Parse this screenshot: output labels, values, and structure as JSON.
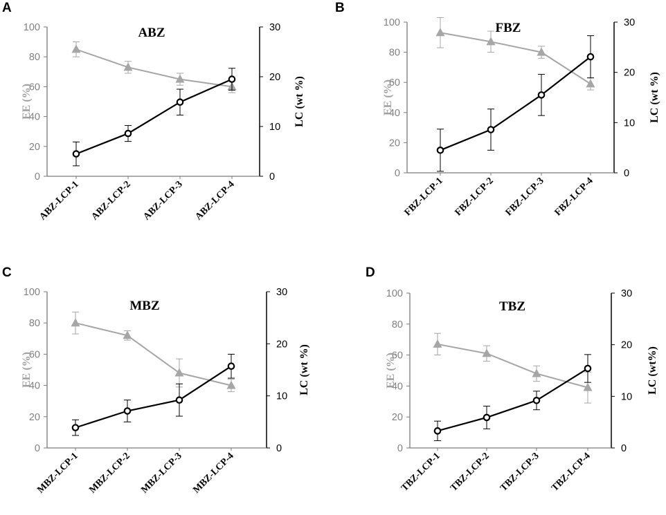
{
  "colors": {
    "ee": "#a6a6a6",
    "lc": "#000000",
    "ee_tick": "#808080",
    "lc_tick": "#000000"
  },
  "chart_data": [
    {
      "panel": "A",
      "type": "line",
      "title": "ABZ",
      "categories": [
        "ABZ-LCP-1",
        "ABZ-LCP-2",
        "ABZ-LCP-3",
        "ABZ-LCP-4"
      ],
      "ylabel_left": "EE (%)",
      "ylabel_right": "LC (wt %)",
      "ylim_left": [
        0,
        100
      ],
      "ylim_right": [
        0,
        30
      ],
      "ticks_left": [
        0,
        20,
        40,
        60,
        80,
        100
      ],
      "ticks_right": [
        0,
        10,
        20,
        30
      ],
      "series": [
        {
          "name": "EE",
          "axis": "left",
          "marker": "triangle",
          "values": [
            85,
            73,
            65,
            60
          ],
          "errors": [
            5,
            4,
            4,
            4
          ]
        },
        {
          "name": "LC",
          "axis": "right",
          "marker": "circle",
          "values": [
            4.5,
            8.6,
            14.9,
            19.5
          ],
          "errors": [
            2.4,
            1.6,
            2.6,
            2.2
          ]
        }
      ]
    },
    {
      "panel": "B",
      "type": "line",
      "title": "FBZ",
      "categories": [
        "FBZ-LCP-1",
        "FBZ-LCP-2",
        "FBZ-LCP-3",
        "FBZ-LCP-4"
      ],
      "ylabel_left": "EE (%)",
      "ylabel_right": "LC (wt  %)",
      "ylim_left": [
        0,
        100
      ],
      "ylim_right": [
        0,
        30
      ],
      "ticks_left": [
        0,
        20,
        40,
        60,
        80,
        100
      ],
      "ticks_right": [
        0,
        10,
        20,
        30
      ],
      "series": [
        {
          "name": "EE",
          "axis": "left",
          "marker": "triangle",
          "values": [
            93,
            87,
            80,
            59
          ],
          "errors": [
            10,
            7,
            4,
            4
          ]
        },
        {
          "name": "LC",
          "axis": "right",
          "marker": "circle",
          "values": [
            4.5,
            8.6,
            15.5,
            23.1
          ],
          "errors": [
            4.2,
            4.1,
            4.1,
            4.2
          ]
        }
      ]
    },
    {
      "panel": "C",
      "type": "line",
      "title": "MBZ",
      "categories": [
        "MBZ-LCP-1",
        "MBZ-LCP-2",
        "MBZ-LCP-3",
        "MBZ-LCP-4"
      ],
      "ylabel_left": "EE (%)",
      "ylabel_right": "LC (wt %)",
      "ylim_left": [
        0,
        100
      ],
      "ylim_right": [
        0,
        30
      ],
      "ticks_left": [
        0,
        20,
        40,
        60,
        80,
        100
      ],
      "ticks_right": [
        0,
        10,
        20,
        30
      ],
      "series": [
        {
          "name": "EE",
          "axis": "left",
          "marker": "triangle",
          "values": [
            80,
            72,
            48,
            40
          ],
          "errors": [
            7,
            3,
            9,
            4
          ]
        },
        {
          "name": "LC",
          "axis": "right",
          "marker": "circle",
          "values": [
            3.9,
            7.1,
            9.2,
            15.7
          ],
          "errors": [
            1.5,
            2.1,
            3.1,
            2.3
          ]
        }
      ]
    },
    {
      "panel": "D",
      "type": "line",
      "title": "TBZ",
      "categories": [
        "TBZ-LCP-1",
        "TBZ-LCP-2",
        "TBZ-LCP-3",
        "TBZ-LCP-4"
      ],
      "ylabel_left": "EE (%)",
      "ylabel_right": "LC (wt%)",
      "ylim_left": [
        0,
        100
      ],
      "ylim_right": [
        0,
        30
      ],
      "ticks_left": [
        0,
        20,
        40,
        60,
        80,
        100
      ],
      "ticks_right": [
        0,
        10,
        20,
        30
      ],
      "series": [
        {
          "name": "EE",
          "axis": "left",
          "marker": "triangle",
          "values": [
            67,
            61,
            48,
            39
          ],
          "errors": [
            7,
            5,
            5,
            10
          ]
        },
        {
          "name": "LC",
          "axis": "right",
          "marker": "circle",
          "values": [
            3.3,
            5.9,
            9.2,
            15.4
          ],
          "errors": [
            1.9,
            2.2,
            1.8,
            2.7
          ]
        }
      ]
    }
  ]
}
